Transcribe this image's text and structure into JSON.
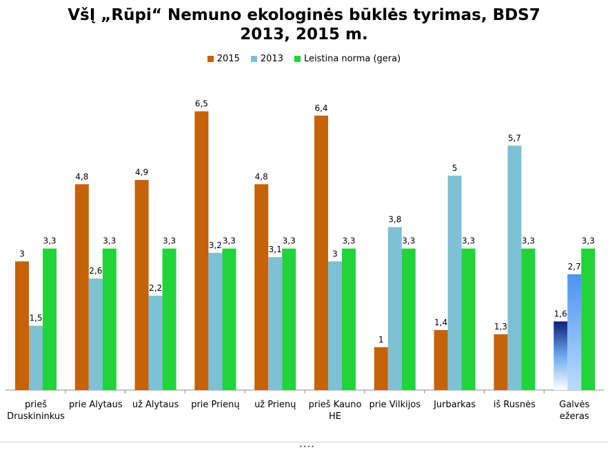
{
  "chart_data": {
    "type": "bar",
    "title_line1": "VšĮ „Rūpi“ Nemuno ekologinės būklės tyrimas, BDS7",
    "title_line2": "2013, 2015 m.",
    "legend_position": "top",
    "grid": false,
    "ylim": [
      0,
      7.2
    ],
    "categories": [
      [
        "prieš",
        "Druskininkus"
      ],
      [
        "prie Alytaus"
      ],
      [
        "už Alytaus"
      ],
      [
        "prie Prienų"
      ],
      [
        "už Prienų"
      ],
      [
        "prieš Kauno",
        "HE"
      ],
      [
        "prie Vilkijos"
      ],
      [
        "Jurbarkas"
      ],
      [
        "iš Rusnės"
      ],
      [
        "Galvės",
        "ežeras"
      ]
    ],
    "series": [
      {
        "name": "2015",
        "color": "#C5620A",
        "values": [
          3,
          4.8,
          4.9,
          6.5,
          4.8,
          6.4,
          1,
          1.4,
          1.3,
          1.6
        ],
        "labels": [
          "3",
          "4,8",
          "4,9",
          "6,5",
          "4,8",
          "6,4",
          "1",
          "1,4",
          "1,3",
          "1,6"
        ]
      },
      {
        "name": "2013",
        "color": "#7EC0D4",
        "values": [
          1.5,
          2.6,
          2.2,
          3.2,
          3.1,
          3,
          3.8,
          5,
          5.7,
          2.7
        ],
        "labels": [
          "1,5",
          "2,6",
          "2,2",
          "3,2",
          "3,1",
          "3",
          "3,8",
          "5",
          "5,7",
          "2,7"
        ]
      },
      {
        "name": "Leistina norma (gera)",
        "color": "#22D33A",
        "values": [
          3.3,
          3.3,
          3.3,
          3.3,
          3.3,
          3.3,
          3.3,
          3.3,
          3.3,
          3.3
        ],
        "labels": [
          "3,3",
          "3,3",
          "3,3",
          "3,3",
          "3,3",
          "3,3",
          "3,3",
          "3,3",
          "3,3",
          "3,3"
        ]
      }
    ],
    "special_fills": [
      {
        "series": 0,
        "category": 9,
        "gradient": [
          "#0E1F78",
          "#6AA8F0",
          "#FFFFFF"
        ]
      },
      {
        "series": 1,
        "category": 9,
        "gradient": [
          "#4D93F0",
          "#BCDcFF"
        ]
      }
    ],
    "axis_color": "#888888"
  }
}
